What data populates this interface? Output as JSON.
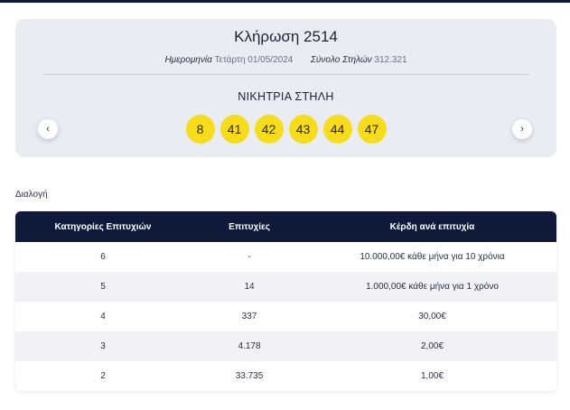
{
  "draw": {
    "title": "Κλήρωση 2514",
    "date_label": "Ημερομηνία",
    "date_value": "Τετάρτη 01/05/2024",
    "columns_label": "Σύνολο Στηλών",
    "columns_value": "312.321",
    "winning_label": "ΝΙΚΗΤΡΙΑ ΣΤΗΛΗ",
    "numbers": [
      "8",
      "41",
      "42",
      "43",
      "44",
      "47"
    ],
    "prev_icon": "‹",
    "next_icon": "›"
  },
  "results": {
    "section_label": "Διαλογή",
    "headers": [
      "Κατηγορίες Επιτυχιών",
      "Επιτυχίες",
      "Κέρδη ανά επιτυχία"
    ],
    "rows": [
      [
        "6",
        "-",
        "10.000,00€ κάθε μήνα για 10 χρόνια"
      ],
      [
        "5",
        "14",
        "1.000,00€ κάθε μήνα για 1 χρόνο"
      ],
      [
        "4",
        "337",
        "30,00€"
      ],
      [
        "3",
        "4.178",
        "2,00€"
      ],
      [
        "2",
        "33.735",
        "1,00€"
      ]
    ]
  },
  "colors": {
    "header_bg": "#0f1a3a",
    "ball": "#f7dc1a",
    "card_bg": "#e9ecf3"
  }
}
